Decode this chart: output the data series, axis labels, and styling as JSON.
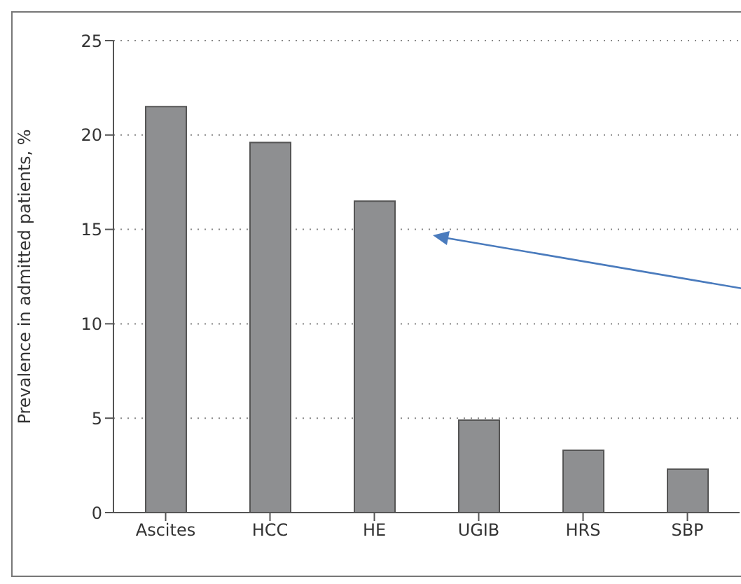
{
  "chart_data": {
    "type": "bar",
    "ylabel": "Prevalence in admitted patients, %",
    "categories": [
      "Ascites",
      "HCC",
      "HE",
      "UGIB",
      "HRS",
      "SBP"
    ],
    "values": [
      21.5,
      19.6,
      16.5,
      4.9,
      3.3,
      2.3
    ],
    "color": "#8e8f91",
    "ylim": [
      0,
      25
    ],
    "yticks": [
      0,
      5,
      10,
      15,
      20,
      25
    ],
    "grid": "y"
  }
}
